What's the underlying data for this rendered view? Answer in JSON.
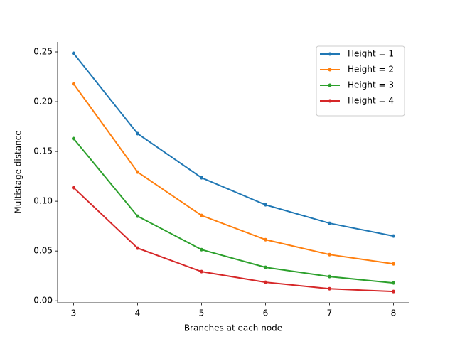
{
  "chart_data": {
    "type": "line",
    "x_label": "Branches at each node",
    "y_label": "Multistage distance",
    "x": [
      3,
      4,
      5,
      6,
      7,
      8
    ],
    "series": [
      {
        "name": "Height = 1",
        "color": "#1f77b4",
        "values": [
          0.2486,
          0.1679,
          0.1236,
          0.0964,
          0.0779,
          0.065
        ]
      },
      {
        "name": "Height = 2",
        "color": "#ff7f0e",
        "values": [
          0.2179,
          0.1293,
          0.0857,
          0.0614,
          0.0464,
          0.0371
        ]
      },
      {
        "name": "Height = 3",
        "color": "#2ca02c",
        "values": [
          0.1629,
          0.085,
          0.0514,
          0.0336,
          0.0243,
          0.0179
        ]
      },
      {
        "name": "Height = 4",
        "color": "#d62728",
        "values": [
          0.1136,
          0.0529,
          0.0293,
          0.0186,
          0.0121,
          0.0093
        ]
      }
    ],
    "xlim": [
      2.75,
      8.25
    ],
    "xticks": [
      3,
      4,
      5,
      6,
      7,
      8
    ],
    "ylim": [
      -0.002,
      0.26
    ],
    "yticks": [
      {
        "value": 0,
        "label": "0.00"
      },
      {
        "value": 0.05,
        "label": "0.05"
      },
      {
        "value": 0.1,
        "label": "0.10"
      },
      {
        "value": 0.15,
        "label": "0.15"
      },
      {
        "value": 0.2,
        "label": "0.20"
      },
      {
        "value": 0.25,
        "label": "0.25"
      }
    ],
    "legend": "upper right"
  }
}
